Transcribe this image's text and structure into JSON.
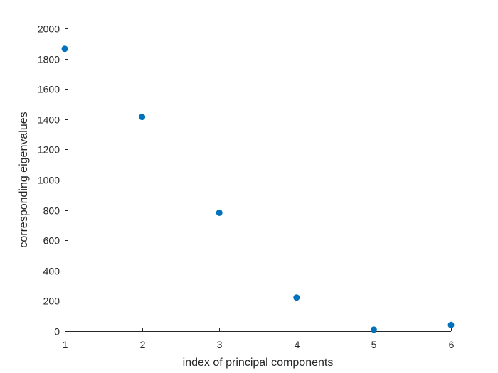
{
  "chart_data": {
    "type": "scatter",
    "xlabel": "index of principal components",
    "ylabel": "corresponding eigenvalues",
    "xlim": [
      1,
      6
    ],
    "ylim": [
      0,
      2000
    ],
    "xticks": [
      1,
      2,
      3,
      4,
      5,
      6
    ],
    "yticks": [
      0,
      200,
      400,
      600,
      800,
      1000,
      1200,
      1400,
      1600,
      1800,
      2000
    ],
    "grid": false,
    "series": [
      {
        "color": "#0072BD",
        "x": [
          1,
          2,
          3,
          4,
          5,
          6
        ],
        "y": [
          1865,
          1415,
          782,
          222,
          10,
          41
        ]
      }
    ]
  }
}
